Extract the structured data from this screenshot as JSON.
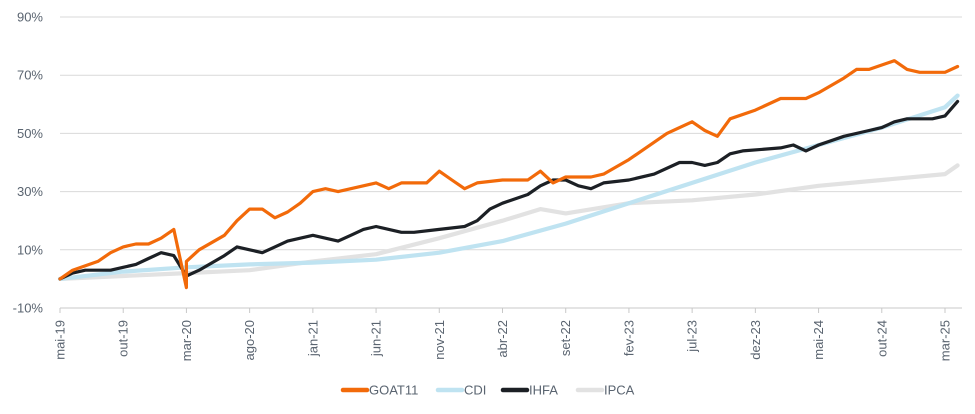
{
  "chart_data": {
    "type": "line",
    "title": "",
    "xlabel": "",
    "ylabel": "",
    "ylim": [
      -10,
      90
    ],
    "yticks": [
      -10,
      10,
      30,
      50,
      70,
      90
    ],
    "ytick_suffix": "%",
    "x_labels": [
      "mai-19",
      "out-19",
      "mar-20",
      "ago-20",
      "jan-21",
      "jun-21",
      "nov-21",
      "abr-22",
      "set-22",
      "fev-23",
      "jul-23",
      "dez-23",
      "mai-24",
      "out-24",
      "mar-25"
    ],
    "x_start": "mai-19",
    "x_end": "mar-25",
    "grid": "horizontal",
    "legend_position": "bottom",
    "series": [
      {
        "name": "GOAT11",
        "color": "#f26a0a",
        "stroke": 3.2,
        "points": [
          [
            "mai-19",
            0
          ],
          [
            "jun-19",
            3
          ],
          [
            "ago-19",
            6
          ],
          [
            "set-19",
            9
          ],
          [
            "out-19",
            11
          ],
          [
            "nov-19",
            12
          ],
          [
            "dez-19",
            12
          ],
          [
            "jan-20",
            14
          ],
          [
            "fev-20",
            17
          ],
          [
            "mar-20",
            -3
          ],
          [
            "mar-20",
            6
          ],
          [
            "abr-20",
            10
          ],
          [
            "jun-20",
            15
          ],
          [
            "jul-20",
            20
          ],
          [
            "ago-20",
            24
          ],
          [
            "set-20",
            24
          ],
          [
            "out-20",
            21
          ],
          [
            "nov-20",
            23
          ],
          [
            "dez-20",
            26
          ],
          [
            "jan-21",
            30
          ],
          [
            "fev-21",
            31
          ],
          [
            "mar-21",
            30
          ],
          [
            "mai-21",
            32
          ],
          [
            "jun-21",
            33
          ],
          [
            "jul-21",
            31
          ],
          [
            "ago-21",
            33
          ],
          [
            "out-21",
            33
          ],
          [
            "nov-21",
            37
          ],
          [
            "dez-21",
            34
          ],
          [
            "jan-22",
            31
          ],
          [
            "fev-22",
            33
          ],
          [
            "abr-22",
            34
          ],
          [
            "jun-22",
            34
          ],
          [
            "jul-22",
            37
          ],
          [
            "ago-22",
            33
          ],
          [
            "set-22",
            35
          ],
          [
            "nov-22",
            35
          ],
          [
            "dez-22",
            36
          ],
          [
            "fev-23",
            41
          ],
          [
            "mai-23",
            50
          ],
          [
            "jul-23",
            54
          ],
          [
            "ago-23",
            51
          ],
          [
            "set-23",
            49
          ],
          [
            "out-23",
            55
          ],
          [
            "dez-23",
            58
          ],
          [
            "fev-24",
            62
          ],
          [
            "abr-24",
            62
          ],
          [
            "mai-24",
            64
          ],
          [
            "jul-24",
            69
          ],
          [
            "ago-24",
            72
          ],
          [
            "set-24",
            72
          ],
          [
            "nov-24",
            75
          ],
          [
            "dez-24",
            72
          ],
          [
            "jan-25",
            71
          ],
          [
            "fev-25",
            71
          ],
          [
            "mar-25",
            71
          ],
          [
            "abr-25",
            73
          ]
        ]
      },
      {
        "name": "CDI",
        "color": "#bfe3f1",
        "stroke": 4.2,
        "points": [
          [
            "mai-19",
            0
          ],
          [
            "out-19",
            2.5
          ],
          [
            "mar-20",
            4
          ],
          [
            "ago-20",
            5
          ],
          [
            "jan-21",
            5.6
          ],
          [
            "jun-21",
            6.6
          ],
          [
            "nov-21",
            9
          ],
          [
            "abr-22",
            13
          ],
          [
            "set-22",
            19
          ],
          [
            "fev-23",
            26
          ],
          [
            "jul-23",
            33
          ],
          [
            "dez-23",
            40
          ],
          [
            "mai-24",
            46
          ],
          [
            "out-24",
            52
          ],
          [
            "mar-25",
            59
          ],
          [
            "abr-25",
            63
          ]
        ]
      },
      {
        "name": "IHFA",
        "color": "#1c2025",
        "stroke": 3.2,
        "points": [
          [
            "mai-19",
            0
          ],
          [
            "jun-19",
            2
          ],
          [
            "jul-19",
            3
          ],
          [
            "set-19",
            3
          ],
          [
            "out-19",
            4
          ],
          [
            "nov-19",
            5
          ],
          [
            "dez-19",
            7
          ],
          [
            "jan-20",
            9
          ],
          [
            "fev-20",
            8
          ],
          [
            "mar-20",
            1
          ],
          [
            "abr-20",
            3
          ],
          [
            "jun-20",
            8
          ],
          [
            "jul-20",
            11
          ],
          [
            "ago-20",
            10
          ],
          [
            "set-20",
            9
          ],
          [
            "out-20",
            11
          ],
          [
            "nov-20",
            13
          ],
          [
            "dez-20",
            14
          ],
          [
            "jan-21",
            15
          ],
          [
            "mar-21",
            13
          ],
          [
            "abr-21",
            15
          ],
          [
            "mai-21",
            17
          ],
          [
            "jun-21",
            18
          ],
          [
            "ago-21",
            16
          ],
          [
            "set-21",
            16
          ],
          [
            "nov-21",
            17
          ],
          [
            "jan-22",
            18
          ],
          [
            "fev-22",
            20
          ],
          [
            "mar-22",
            24
          ],
          [
            "abr-22",
            26
          ],
          [
            "jun-22",
            29
          ],
          [
            "jul-22",
            32
          ],
          [
            "ago-22",
            34
          ],
          [
            "set-22",
            34
          ],
          [
            "out-22",
            32
          ],
          [
            "nov-22",
            31
          ],
          [
            "dez-22",
            33
          ],
          [
            "fev-23",
            34
          ],
          [
            "abr-23",
            36
          ],
          [
            "jun-23",
            40
          ],
          [
            "jul-23",
            40
          ],
          [
            "ago-23",
            39
          ],
          [
            "set-23",
            40
          ],
          [
            "out-23",
            43
          ],
          [
            "nov-23",
            44
          ],
          [
            "fev-24",
            45
          ],
          [
            "mar-24",
            46
          ],
          [
            "abr-24",
            44
          ],
          [
            "mai-24",
            46
          ],
          [
            "jul-24",
            49
          ],
          [
            "set-24",
            51
          ],
          [
            "out-24",
            52
          ],
          [
            "nov-24",
            54
          ],
          [
            "dez-24",
            55
          ],
          [
            "jan-25",
            55
          ],
          [
            "fev-25",
            55
          ],
          [
            "mar-25",
            56
          ],
          [
            "abr-25",
            61
          ]
        ]
      },
      {
        "name": "IPCA",
        "color": "#e2e2e2",
        "stroke": 4.2,
        "points": [
          [
            "mai-19",
            0
          ],
          [
            "out-19",
            1
          ],
          [
            "mar-20",
            2
          ],
          [
            "ago-20",
            3
          ],
          [
            "jan-21",
            6
          ],
          [
            "jun-21",
            8.5
          ],
          [
            "nov-21",
            14
          ],
          [
            "abr-22",
            20
          ],
          [
            "jul-22",
            24
          ],
          [
            "set-22",
            22.5
          ],
          [
            "fev-23",
            26
          ],
          [
            "jul-23",
            27
          ],
          [
            "dez-23",
            29
          ],
          [
            "mai-24",
            32
          ],
          [
            "out-24",
            34
          ],
          [
            "mar-25",
            36
          ],
          [
            "abr-25",
            39
          ]
        ]
      }
    ]
  }
}
